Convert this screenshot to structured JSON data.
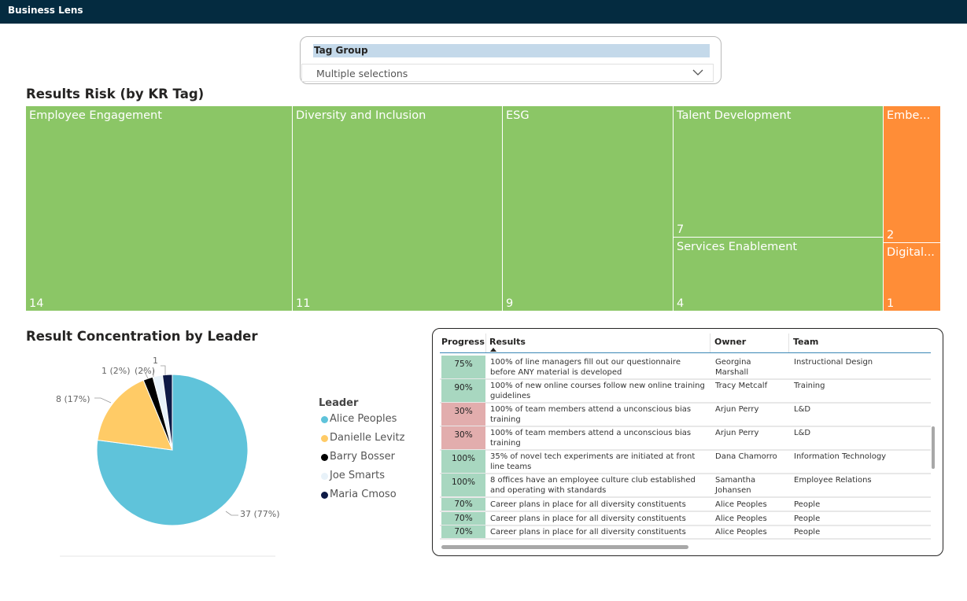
{
  "app": {
    "title": "Business Lens"
  },
  "slicer": {
    "header": "Tag Group",
    "value": "Multiple selections"
  },
  "treemap": {
    "title": "Results Risk (by KR Tag)",
    "tiles": [
      {
        "label": "Employee Engagement",
        "value": "14",
        "status": "green"
      },
      {
        "label": "Diversity and Inclusion",
        "value": "11",
        "status": "green"
      },
      {
        "label": "ESG",
        "value": "9",
        "status": "green"
      },
      {
        "label": "Talent Development",
        "value": "7",
        "status": "green"
      },
      {
        "label": "Services Enablement",
        "value": "4",
        "status": "green"
      },
      {
        "label": "Embe...",
        "value": "2",
        "status": "orange"
      },
      {
        "label": "Digital...",
        "value": "1",
        "status": "orange"
      }
    ],
    "colors": {
      "green": "#8bc666",
      "orange": "#ff8d37"
    }
  },
  "pie": {
    "title": "Result Concentration by Leader",
    "legend_title": "Leader",
    "labels": [
      "37 (77%)",
      "8 (17%)",
      "1 (2%)",
      "(2%)",
      "1"
    ]
  },
  "chart_data": {
    "type": "pie",
    "title": "Result Concentration by Leader",
    "legend_title": "Leader",
    "legend_position": "right",
    "series": [
      {
        "name": "Alice Peoples",
        "value": 37,
        "percent": 77,
        "color": "#5fc3da"
      },
      {
        "name": "Danielle Levitz",
        "value": 8,
        "percent": 17,
        "color": "#ffcb66"
      },
      {
        "name": "Barry Bosser",
        "value": 1,
        "percent": 2,
        "color": "#000000"
      },
      {
        "name": "Joe Smarts",
        "value": 1,
        "percent": 2,
        "color": "#e8f2f9"
      },
      {
        "name": "Maria Cmoso",
        "value": 1,
        "percent": 2,
        "color": "#0e1a46"
      }
    ]
  },
  "table": {
    "headers": {
      "progress": "Progress",
      "results": "Results",
      "owner": "Owner",
      "team": "Team"
    },
    "rows": [
      {
        "progress": "75%",
        "status": "green",
        "result1": "100% of line managers fill out our questionnaire",
        "result2": "before ANY material is developed",
        "owner1": "Georgina",
        "owner2": "Marshall",
        "team": "Instructional Design"
      },
      {
        "progress": "90%",
        "status": "green",
        "result1": "100% of new online courses follow new online training",
        "result2": "guidelines",
        "owner1": "Tracy Metcalf",
        "owner2": "",
        "team": "Training"
      },
      {
        "progress": "30%",
        "status": "red",
        "result1": "100% of team members attend a unconscious bias",
        "result2": "training",
        "owner1": "Arjun Perry",
        "owner2": "",
        "team": "L&D"
      },
      {
        "progress": "30%",
        "status": "red",
        "result1": "100% of team members attend a unconscious bias",
        "result2": "training",
        "owner1": "Arjun Perry",
        "owner2": "",
        "team": "L&D"
      },
      {
        "progress": "100%",
        "status": "green",
        "result1": "35% of novel tech experiments are initiated at front",
        "result2": "line teams",
        "owner1": "Dana Chamorro",
        "owner2": "",
        "team": "Information Technology"
      },
      {
        "progress": "100%",
        "status": "green",
        "result1": "8 offices have an employee culture club established",
        "result2": "and operating with standards",
        "owner1": "Samantha",
        "owner2": "Johansen",
        "team": "Employee Relations"
      },
      {
        "progress": "70%",
        "status": "green",
        "result1": "Career plans in place for all diversity constituents",
        "result2": "",
        "owner1": "Alice Peoples",
        "owner2": "",
        "team": "People"
      },
      {
        "progress": "70%",
        "status": "green",
        "result1": "Career plans in place for all diversity constituents",
        "result2": "",
        "owner1": "Alice Peoples",
        "owner2": "",
        "team": "People"
      },
      {
        "progress": "70%",
        "status": "green",
        "result1": "Career plans in place for all diversity constituents",
        "result2": "",
        "owner1": "Alice Peoples",
        "owner2": "",
        "team": "People"
      }
    ],
    "status_colors": {
      "green": "#a8d7c0",
      "red": "#e2adad"
    }
  }
}
